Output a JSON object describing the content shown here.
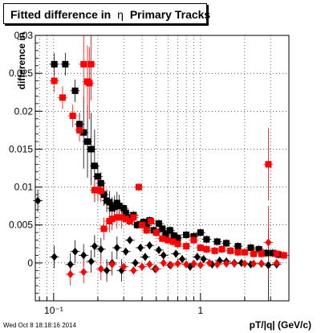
{
  "title": "Fitted difference in",
  "title_symbol": "η",
  "title_suffix": "Primary Tracks",
  "footer": "Wed Oct  8 18:18:16 2014",
  "chart_data": {
    "type": "scatter",
    "title": "Fitted difference in η Primary Tracks",
    "xlabel": "pT/|q| (GeV/c)",
    "ylabel": "difference in",
    "xscale": "log",
    "xlim": [
      0.075,
      4.0
    ],
    "ylim": [
      -0.005,
      0.03
    ],
    "grid": true,
    "y_ticks": [
      0,
      0.005,
      0.01,
      0.015,
      0.02,
      0.025,
      0.03
    ],
    "y_tick_labels": [
      "0",
      "0.005",
      "0.01",
      "0.015",
      "0.02",
      "0.025",
      "0.03"
    ],
    "x_major_ticks": [
      0.1,
      1
    ],
    "x_tick_labels": [
      "10⁻¹",
      "1"
    ],
    "series": [
      {
        "marker": "square",
        "color": "#000000",
        "points": [
          [
            0.101,
            0.0262
          ],
          [
            0.12,
            0.0262
          ],
          [
            0.14,
            0.0227
          ],
          [
            0.15,
            0.0183
          ],
          [
            0.16,
            0.0172
          ],
          [
            0.17,
            0.016
          ],
          [
            0.18,
            0.015
          ],
          [
            0.19,
            0.0128
          ],
          [
            0.2,
            0.0114
          ],
          [
            0.21,
            0.0105
          ],
          [
            0.22,
            0.009
          ],
          [
            0.23,
            0.0082
          ],
          [
            0.24,
            0.008
          ],
          [
            0.25,
            0.0072
          ],
          [
            0.26,
            0.0074
          ],
          [
            0.27,
            0.0079
          ],
          [
            0.28,
            0.0075
          ],
          [
            0.3,
            0.0072
          ],
          [
            0.31,
            0.0066
          ],
          [
            0.32,
            0.006
          ],
          [
            0.33,
            0.0058
          ],
          [
            0.35,
            0.0063
          ],
          [
            0.37,
            0.005
          ],
          [
            0.39,
            0.0051
          ],
          [
            0.41,
            0.0054
          ],
          [
            0.43,
            0.0049
          ],
          [
            0.45,
            0.0056
          ],
          [
            0.48,
            0.0043
          ],
          [
            0.5,
            0.004
          ],
          [
            0.52,
            0.0052
          ],
          [
            0.55,
            0.0045
          ],
          [
            0.58,
            0.0038
          ],
          [
            0.62,
            0.0043
          ],
          [
            0.66,
            0.0036
          ],
          [
            0.7,
            0.0033
          ],
          [
            0.8,
            0.0037
          ],
          [
            0.9,
            0.0035
          ],
          [
            1.0,
            0.004
          ],
          [
            1.1,
            0.0031
          ],
          [
            1.3,
            0.0028
          ],
          [
            1.5,
            0.0026
          ],
          [
            1.8,
            0.0022
          ],
          [
            2.2,
            0.002
          ],
          [
            2.5,
            0.0018
          ],
          [
            2.8,
            0.0013
          ],
          [
            3.1,
            0.0013
          ],
          [
            3.4,
            0.0011
          ]
        ]
      },
      {
        "marker": "square",
        "color": "#ff0000",
        "points": [
          [
            0.101,
            0.024
          ],
          [
            0.115,
            0.0218
          ],
          [
            0.135,
            0.0194
          ],
          [
            0.15,
            0.0175
          ],
          [
            0.16,
            0.0262
          ],
          [
            0.17,
            0.0239
          ],
          [
            0.175,
            0.0237
          ],
          [
            0.18,
            0.0262
          ],
          [
            0.19,
            0.0096
          ],
          [
            0.2,
            0.0096
          ],
          [
            0.21,
            0.0095
          ],
          [
            0.22,
            0.0045
          ],
          [
            0.24,
            0.0055
          ],
          [
            0.25,
            0.0058
          ],
          [
            0.27,
            0.006
          ],
          [
            0.29,
            0.006
          ],
          [
            0.31,
            0.0058
          ],
          [
            0.33,
            0.0055
          ],
          [
            0.35,
            0.006
          ],
          [
            0.38,
            0.01
          ],
          [
            0.4,
            0.005
          ],
          [
            0.43,
            0.0043
          ],
          [
            0.46,
            0.0055
          ],
          [
            0.5,
            0.004
          ],
          [
            0.55,
            0.0032
          ],
          [
            0.6,
            0.003
          ],
          [
            0.65,
            0.0028
          ],
          [
            0.7,
            0.0025
          ],
          [
            0.8,
            0.0022
          ],
          [
            0.9,
            0.003
          ],
          [
            1.0,
            0.002
          ],
          [
            1.1,
            0.0018
          ],
          [
            1.25,
            0.0016
          ],
          [
            1.4,
            0.0018
          ],
          [
            1.6,
            0.0016
          ],
          [
            1.8,
            0.0014
          ],
          [
            2.0,
            0.0014
          ],
          [
            2.3,
            0.0012
          ],
          [
            2.6,
            0.0012
          ],
          [
            2.9,
            0.013
          ],
          [
            3.3,
            0.0012
          ],
          [
            3.7,
            0.001
          ]
        ]
      },
      {
        "marker": "diamond",
        "color": "#000000",
        "points": [
          [
            0.078,
            0.0082
          ],
          [
            0.101,
            0.0008
          ],
          [
            0.13,
            -0.0002
          ],
          [
            0.14,
            0.0015
          ],
          [
            0.16,
            0.001
          ],
          [
            0.18,
            0.0002
          ],
          [
            0.19,
            0.0022
          ],
          [
            0.21,
            0.0018
          ],
          [
            0.23,
            -0.001
          ],
          [
            0.25,
            0.0
          ],
          [
            0.27,
            0.002
          ],
          [
            0.29,
            -0.001
          ],
          [
            0.31,
            0.0015
          ],
          [
            0.33,
            0.003
          ],
          [
            0.36,
            0.0
          ],
          [
            0.39,
            0.002
          ],
          [
            0.42,
            0.0008
          ],
          [
            0.45,
            0.0023
          ],
          [
            0.49,
            -0.0008
          ],
          [
            0.52,
            0.0017
          ],
          [
            0.56,
            0.001
          ],
          [
            0.62,
            -0.0003
          ],
          [
            0.68,
            0.0012
          ],
          [
            0.75,
            0.0005
          ],
          [
            0.85,
            -0.0005
          ],
          [
            0.95,
            0.0008
          ],
          [
            1.05,
            0.0005
          ],
          [
            1.2,
            -0.0002
          ],
          [
            1.35,
            0.0003
          ],
          [
            1.5,
            0.0002
          ],
          [
            1.7,
            0.0
          ],
          [
            1.9,
            0.0
          ],
          [
            2.2,
            -0.0002
          ],
          [
            2.6,
            -0.0001
          ],
          [
            2.9,
            -0.0003
          ],
          [
            3.3,
            -0.0002
          ]
        ]
      },
      {
        "marker": "diamond",
        "color": "#ff0000",
        "points": [
          [
            0.13,
            -0.0015
          ],
          [
            0.16,
            -0.0012
          ],
          [
            0.21,
            -0.0008
          ],
          [
            0.25,
            -0.0002
          ],
          [
            0.3,
            -0.0005
          ],
          [
            0.35,
            -0.001
          ],
          [
            0.4,
            -0.0005
          ],
          [
            0.45,
            -0.0002
          ],
          [
            0.5,
            -0.0008
          ],
          [
            0.56,
            0.0
          ],
          [
            0.63,
            -0.0003
          ],
          [
            0.7,
            -0.0001
          ],
          [
            0.8,
            -0.0002
          ],
          [
            0.9,
            -0.0001
          ],
          [
            1.0,
            -0.0003
          ],
          [
            1.15,
            0.0
          ],
          [
            1.3,
            -0.0002
          ],
          [
            1.5,
            -0.0001
          ],
          [
            1.7,
            -0.0001
          ],
          [
            2.0,
            -0.0001
          ],
          [
            2.3,
            -0.0001
          ],
          [
            2.6,
            -0.0001
          ],
          [
            2.9,
            0.0027
          ],
          [
            3.3,
            0.0
          ]
        ]
      }
    ]
  }
}
